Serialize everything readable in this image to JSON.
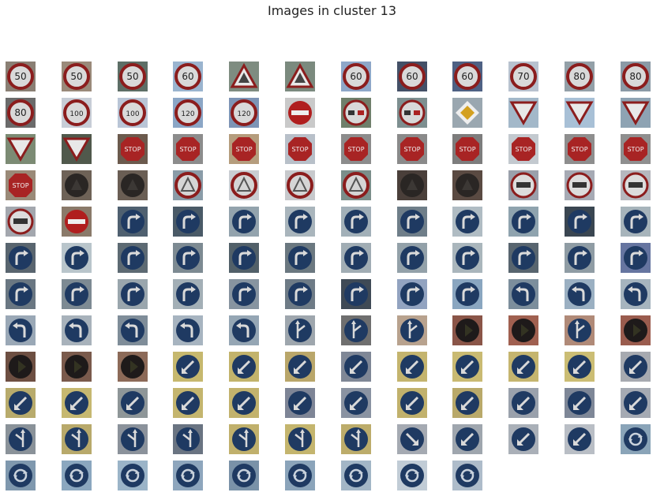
{
  "title": "Images in cluster 13",
  "grid": {
    "columns": 12,
    "rows": 12,
    "count": 141,
    "cells": [
      {
        "sign": "speed",
        "text": "50",
        "bg": "#8a7f74"
      },
      {
        "sign": "speed",
        "text": "50",
        "bg": "#9a8a7a"
      },
      {
        "sign": "speed",
        "text": "50",
        "bg": "#5d6e66"
      },
      {
        "sign": "speed",
        "text": "60",
        "bg": "#9ab4cf"
      },
      {
        "sign": "warn",
        "text": "",
        "bg": "#7e8c80"
      },
      {
        "sign": "warn",
        "text": "",
        "bg": "#7b8a7e"
      },
      {
        "sign": "speed",
        "text": "60",
        "bg": "#8ea7c8"
      },
      {
        "sign": "speed",
        "text": "60",
        "bg": "#445067"
      },
      {
        "sign": "speed",
        "text": "60",
        "bg": "#4e6184"
      },
      {
        "sign": "speed",
        "text": "70",
        "bg": "#b8c2cf"
      },
      {
        "sign": "speed",
        "text": "80",
        "bg": "#93a0a8"
      },
      {
        "sign": "speed",
        "text": "80",
        "bg": "#8b9aa6"
      },
      {
        "sign": "speed",
        "text": "80",
        "bg": "#6b6b6b"
      },
      {
        "sign": "speed",
        "text": "100",
        "bg": "#c7cdd6"
      },
      {
        "sign": "speed",
        "text": "100",
        "bg": "#b9c5d6"
      },
      {
        "sign": "speed",
        "text": "120",
        "bg": "#8ba6c6"
      },
      {
        "sign": "speed",
        "text": "120",
        "bg": "#7d94b5"
      },
      {
        "sign": "noentry",
        "text": "",
        "bg": "#c9c9c9"
      },
      {
        "sign": "overtake",
        "text": "",
        "bg": "#6f7f6b"
      },
      {
        "sign": "overtake",
        "text": "",
        "bg": "#7d8f90"
      },
      {
        "sign": "priority",
        "text": "",
        "bg": "#9aa7b0"
      },
      {
        "sign": "yield",
        "text": "",
        "bg": "#a3b8c9"
      },
      {
        "sign": "yield",
        "text": "",
        "bg": "#a8c0d6"
      },
      {
        "sign": "yield",
        "text": "",
        "bg": "#8ea3b3"
      },
      {
        "sign": "yield",
        "text": "",
        "bg": "#7c8b74"
      },
      {
        "sign": "yield",
        "text": "",
        "bg": "#50594c"
      },
      {
        "sign": "stop",
        "text": "STOP",
        "bg": "#6b5a4d"
      },
      {
        "sign": "stop",
        "text": "STOP",
        "bg": "#8c8c8c"
      },
      {
        "sign": "stop",
        "text": "STOP",
        "bg": "#b59d7d"
      },
      {
        "sign": "stop",
        "text": "STOP",
        "bg": "#b8c0c9"
      },
      {
        "sign": "stop",
        "text": "STOP",
        "bg": "#8c8c8c"
      },
      {
        "sign": "stop",
        "text": "STOP",
        "bg": "#8a8a8a"
      },
      {
        "sign": "stop",
        "text": "STOP",
        "bg": "#7d7d7d"
      },
      {
        "sign": "stop",
        "text": "STOP",
        "bg": "#c3c9cf"
      },
      {
        "sign": "stop",
        "text": "STOP",
        "bg": "#8e8e8e"
      },
      {
        "sign": "stop",
        "text": "STOP",
        "bg": "#8f8f8f"
      },
      {
        "sign": "stop",
        "text": "STOP",
        "bg": "#9a8a78"
      },
      {
        "sign": "dark",
        "text": "",
        "bg": "#6e6257"
      },
      {
        "sign": "dark",
        "text": "",
        "bg": "#6a5e54"
      },
      {
        "sign": "warn-round",
        "text": "",
        "bg": "#8a9ca8"
      },
      {
        "sign": "warn-round",
        "text": "",
        "bg": "#c9cdd2"
      },
      {
        "sign": "warn-round",
        "text": "",
        "bg": "#c7c9cc"
      },
      {
        "sign": "warn-round",
        "text": "",
        "bg": "#7b8e8a"
      },
      {
        "sign": "dark",
        "text": "",
        "bg": "#4a3f3a"
      },
      {
        "sign": "dark",
        "text": "",
        "bg": "#5a4a42"
      },
      {
        "sign": "truck",
        "text": "",
        "bg": "#9aa0ab"
      },
      {
        "sign": "truck",
        "text": "",
        "bg": "#a6aab4"
      },
      {
        "sign": "truck",
        "text": "",
        "bg": "#b6b8be"
      },
      {
        "sign": "truck",
        "text": "",
        "bg": "#a3a7ae"
      },
      {
        "sign": "noentry",
        "text": "",
        "bg": "#8a7a6a"
      },
      {
        "sign": "right",
        "text": "",
        "bg": "#4f6070"
      },
      {
        "sign": "right",
        "text": "",
        "bg": "#4a5a67"
      },
      {
        "sign": "right",
        "text": "",
        "bg": "#93a3ad"
      },
      {
        "sign": "right",
        "text": "",
        "bg": "#a9b5bc"
      },
      {
        "sign": "right",
        "text": "",
        "bg": "#a2b0b8"
      },
      {
        "sign": "right",
        "text": "",
        "bg": "#6f7e89"
      },
      {
        "sign": "right",
        "text": "",
        "bg": "#b0bcc3"
      },
      {
        "sign": "right",
        "text": "",
        "bg": "#8fa3ae"
      },
      {
        "sign": "right",
        "text": "",
        "bg": "#3a4651"
      },
      {
        "sign": "right",
        "text": "",
        "bg": "#a7b4bb"
      },
      {
        "sign": "right",
        "text": "",
        "bg": "#59656f"
      },
      {
        "sign": "right",
        "text": "",
        "bg": "#b9c5cb"
      },
      {
        "sign": "right",
        "text": "",
        "bg": "#5d6a73"
      },
      {
        "sign": "right",
        "text": "",
        "bg": "#7d8a92"
      },
      {
        "sign": "right",
        "text": "",
        "bg": "#526069"
      },
      {
        "sign": "right",
        "text": "",
        "bg": "#6b7880"
      },
      {
        "sign": "right",
        "text": "",
        "bg": "#a1adb4"
      },
      {
        "sign": "right",
        "text": "",
        "bg": "#93a1a9"
      },
      {
        "sign": "right",
        "text": "",
        "bg": "#aab6bc"
      },
      {
        "sign": "right",
        "text": "",
        "bg": "#58656f"
      },
      {
        "sign": "right",
        "text": "",
        "bg": "#8f9ca4"
      },
      {
        "sign": "right",
        "text": "",
        "bg": "#6675a0"
      },
      {
        "sign": "right",
        "text": "",
        "bg": "#6a7782"
      },
      {
        "sign": "right",
        "text": "",
        "bg": "#7d8a93"
      },
      {
        "sign": "right",
        "text": "",
        "bg": "#9aa6ad"
      },
      {
        "sign": "right",
        "text": "",
        "bg": "#a3afb6"
      },
      {
        "sign": "right",
        "text": "",
        "bg": "#8794a0"
      },
      {
        "sign": "right",
        "text": "",
        "bg": "#6e7b86"
      },
      {
        "sign": "right",
        "text": "",
        "bg": "#3f4a56"
      },
      {
        "sign": "right",
        "text": "",
        "bg": "#92a3c0"
      },
      {
        "sign": "right",
        "text": "",
        "bg": "#8aa6c0"
      },
      {
        "sign": "left",
        "text": "",
        "bg": "#7c8e9c"
      },
      {
        "sign": "left",
        "text": "",
        "bg": "#9bb0c2"
      },
      {
        "sign": "left",
        "text": "",
        "bg": "#a6b4be"
      },
      {
        "sign": "left",
        "text": "",
        "bg": "#9aa8b6"
      },
      {
        "sign": "left",
        "text": "",
        "bg": "#a8b2bb"
      },
      {
        "sign": "left",
        "text": "",
        "bg": "#7f8d99"
      },
      {
        "sign": "left",
        "text": "",
        "bg": "#a7b4c0"
      },
      {
        "sign": "left",
        "text": "",
        "bg": "#95a6b4"
      },
      {
        "sign": "straightright",
        "text": "",
        "bg": "#9ea6ad"
      },
      {
        "sign": "straightright",
        "text": "",
        "bg": "#6f6f6f"
      },
      {
        "sign": "straightright",
        "text": "",
        "bg": "#b8a28e"
      },
      {
        "sign": "darkred",
        "text": "",
        "bg": "#8a5548"
      },
      {
        "sign": "darkred",
        "text": "",
        "bg": "#a06050"
      },
      {
        "sign": "straightright",
        "text": "",
        "bg": "#b08a78"
      },
      {
        "sign": "darkred",
        "text": "",
        "bg": "#9a5c4e"
      },
      {
        "sign": "darkred",
        "text": "",
        "bg": "#6d4f42"
      },
      {
        "sign": "darkred",
        "text": "",
        "bg": "#7a5a4c"
      },
      {
        "sign": "darkred",
        "text": "",
        "bg": "#8c6a58"
      },
      {
        "sign": "keepleft",
        "text": "",
        "bg": "#c6b86e"
      },
      {
        "sign": "keepleft",
        "text": "",
        "bg": "#c2b36b"
      },
      {
        "sign": "keepleft",
        "text": "",
        "bg": "#b9a66a"
      },
      {
        "sign": "keepleft",
        "text": "",
        "bg": "#7f8796"
      },
      {
        "sign": "keepleft",
        "text": "",
        "bg": "#c4b46e"
      },
      {
        "sign": "keepleft",
        "text": "",
        "bg": "#c9ba72"
      },
      {
        "sign": "keepleft",
        "text": "",
        "bg": "#c5b56f"
      },
      {
        "sign": "keepleft",
        "text": "",
        "bg": "#cbbd74"
      },
      {
        "sign": "keepleft",
        "text": "",
        "bg": "#a7aab0"
      },
      {
        "sign": "keepleft",
        "text": "",
        "bg": "#b8ab6c"
      },
      {
        "sign": "keepleft",
        "text": "",
        "bg": "#c6b870"
      },
      {
        "sign": "keepleft",
        "text": "",
        "bg": "#8e9698"
      },
      {
        "sign": "keepleft",
        "text": "",
        "bg": "#c4b56e"
      },
      {
        "sign": "keepleft",
        "text": "",
        "bg": "#c2b26d"
      },
      {
        "sign": "keepleft",
        "text": "",
        "bg": "#7e8596"
      },
      {
        "sign": "keepleft",
        "text": "",
        "bg": "#8a93a2"
      },
      {
        "sign": "keepleft",
        "text": "",
        "bg": "#c1b16c"
      },
      {
        "sign": "keepleft",
        "text": "",
        "bg": "#b9a96a"
      },
      {
        "sign": "keepleft",
        "text": "",
        "bg": "#9aa1ac"
      },
      {
        "sign": "keepleft",
        "text": "",
        "bg": "#7e8797"
      },
      {
        "sign": "keepleft",
        "text": "",
        "bg": "#a5aab3"
      },
      {
        "sign": "straightleft",
        "text": "",
        "bg": "#8a9299"
      },
      {
        "sign": "straightleft",
        "text": "",
        "bg": "#b8a96b"
      },
      {
        "sign": "straightleft",
        "text": "",
        "bg": "#8b929b"
      },
      {
        "sign": "straightleft",
        "text": "",
        "bg": "#6a7482"
      },
      {
        "sign": "straightleft",
        "text": "",
        "bg": "#c0b06c"
      },
      {
        "sign": "straightleft",
        "text": "",
        "bg": "#c4b56e"
      },
      {
        "sign": "straightleft",
        "text": "",
        "bg": "#bcac6b"
      },
      {
        "sign": "downright",
        "text": "",
        "bg": "#a5aab2"
      },
      {
        "sign": "downleft",
        "text": "",
        "bg": "#9fa6ae"
      },
      {
        "sign": "downleft",
        "text": "",
        "bg": "#aab0b8"
      },
      {
        "sign": "downleft",
        "text": "",
        "bg": "#b9bec5"
      },
      {
        "sign": "roundabout",
        "text": "",
        "bg": "#8aa4b8"
      },
      {
        "sign": "roundabout",
        "text": "",
        "bg": "#7f98ae"
      },
      {
        "sign": "roundabout",
        "text": "",
        "bg": "#8ba7bf"
      },
      {
        "sign": "roundabout",
        "text": "",
        "bg": "#9bb4c8"
      },
      {
        "sign": "roundabout",
        "text": "",
        "bg": "#8ea6bd"
      },
      {
        "sign": "roundabout",
        "text": "",
        "bg": "#7a92a8"
      },
      {
        "sign": "roundabout",
        "text": "",
        "bg": "#8ba4ba"
      },
      {
        "sign": "roundabout",
        "text": "",
        "bg": "#a3b6c6"
      },
      {
        "sign": "roundabout",
        "text": "",
        "bg": "#c1ccd6"
      },
      {
        "sign": "roundabout",
        "text": "",
        "bg": "#aebcca"
      }
    ]
  }
}
